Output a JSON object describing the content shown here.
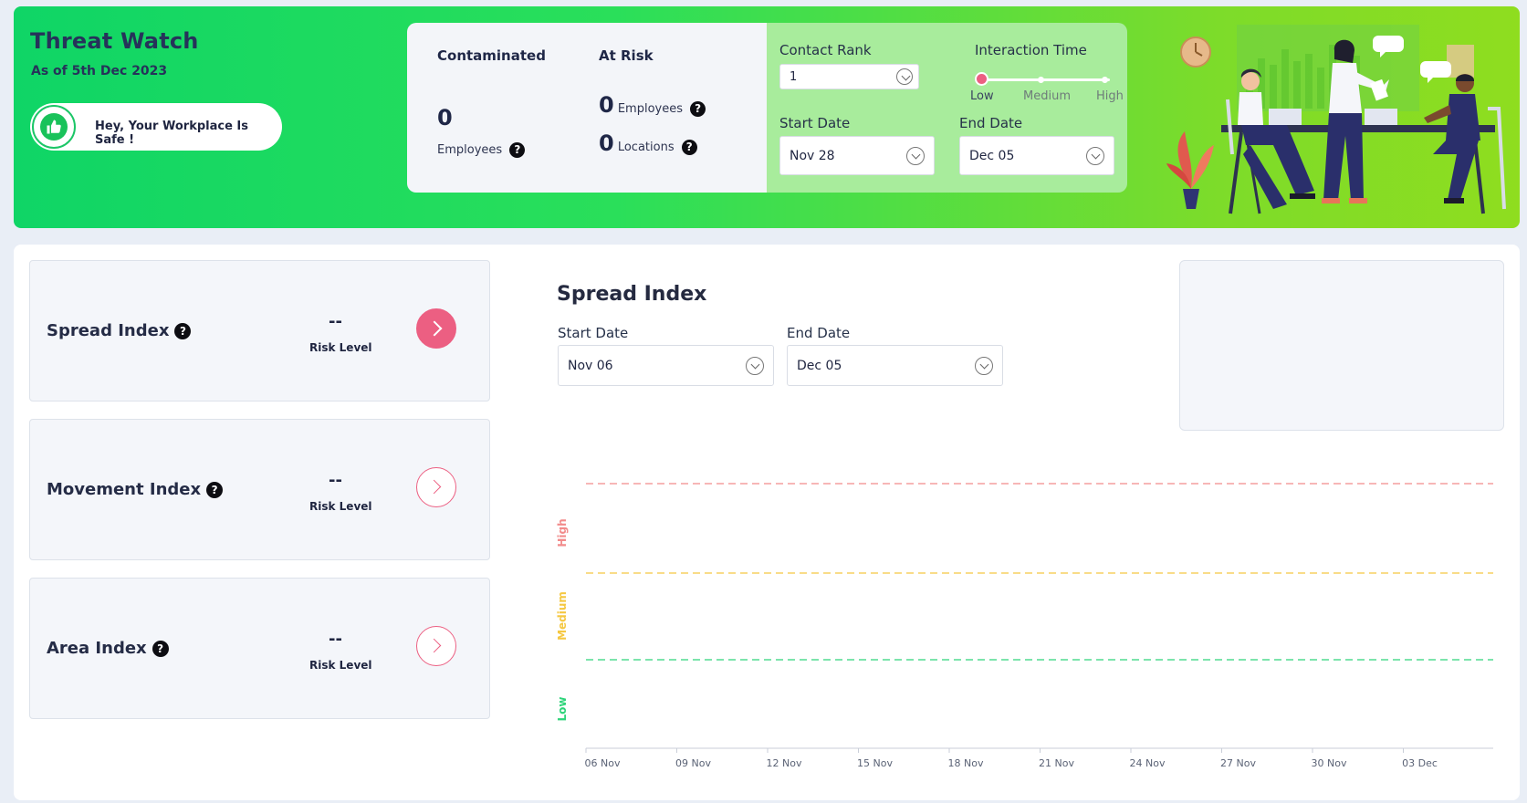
{
  "header": {
    "title": "Threat Watch",
    "as_of": "As of 5th Dec 2023",
    "safe_message": "Hey, Your Workplace Is Safe !"
  },
  "stats": {
    "contaminated": {
      "heading": "Contaminated",
      "count": "0",
      "label": "Employees"
    },
    "at_risk": {
      "heading": "At Risk",
      "employees_count": "0",
      "employees_label": "Employees",
      "locations_count": "0",
      "locations_label": "Locations"
    },
    "help_glyph": "?"
  },
  "filters": {
    "contact_rank": {
      "label": "Contact Rank",
      "value": "1"
    },
    "interaction_time": {
      "label": "Interaction Time",
      "options": [
        "Low",
        "Medium",
        "High"
      ],
      "selected": "Low"
    },
    "start_date": {
      "label": "Start Date",
      "value": "Nov 28"
    },
    "end_date": {
      "label": "End Date",
      "value": "Dec 05"
    }
  },
  "indices": [
    {
      "name": "Spread Index",
      "value": "--",
      "risk_label": "Risk Level",
      "selected": true
    },
    {
      "name": "Movement Index",
      "value": "--",
      "risk_label": "Risk Level",
      "selected": false
    },
    {
      "name": "Area Index",
      "value": "--",
      "risk_label": "Risk Level",
      "selected": false
    }
  ],
  "chart_panel": {
    "title": "Spread Index",
    "start_date": {
      "label": "Start Date",
      "value": "Nov 06"
    },
    "end_date": {
      "label": "End Date",
      "value": "Dec 05"
    }
  },
  "colors": {
    "accent": "#ec5f82",
    "high": "#f28b8b",
    "medium": "#f5c842",
    "low": "#2ed47a",
    "banner_start": "#0fd566",
    "banner_end": "#8fdd1f"
  },
  "chart_data": {
    "type": "line",
    "title": "Spread Index",
    "x_ticks": [
      "06 Nov",
      "09 Nov",
      "12 Nov",
      "15 Nov",
      "18 Nov",
      "21 Nov",
      "24 Nov",
      "27 Nov",
      "30 Nov",
      "03 Dec"
    ],
    "y_bands": [
      "Low",
      "Medium",
      "High"
    ],
    "threshold_lines": [
      {
        "band": "High",
        "color": "#f28b8b"
      },
      {
        "band": "Medium",
        "color": "#f5c842"
      },
      {
        "band": "Low",
        "color": "#2ed47a"
      }
    ],
    "series": [],
    "grid": false
  }
}
